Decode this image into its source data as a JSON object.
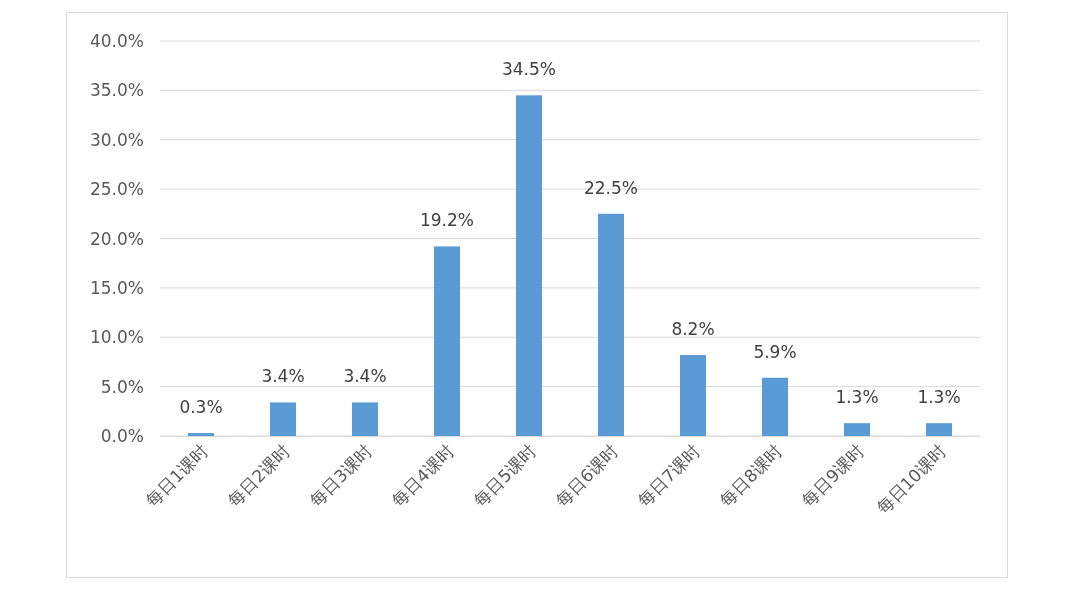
{
  "chart_data": {
    "type": "bar",
    "categories": [
      "每日1课时",
      "每日2课时",
      "每日3课时",
      "每日4课时",
      "每日5课时",
      "每日6课时",
      "每日7课时",
      "每日8课时",
      "每日9课时",
      "每日10课时"
    ],
    "values": [
      0.3,
      3.4,
      3.4,
      19.2,
      34.5,
      22.5,
      8.2,
      5.9,
      1.3,
      1.3
    ],
    "value_labels": [
      "0.3%",
      "3.4%",
      "3.4%",
      "19.2%",
      "34.5%",
      "22.5%",
      "8.2%",
      "5.9%",
      "1.3%",
      "1.3%"
    ],
    "color": "#5b9bd5",
    "ylim": [
      0,
      40
    ],
    "yticks": [
      {
        "value": 0,
        "label": "0.0%"
      },
      {
        "value": 5,
        "label": "5.0%"
      },
      {
        "value": 10,
        "label": "10.0%"
      },
      {
        "value": 15,
        "label": "15.0%"
      },
      {
        "value": 20,
        "label": "20.0%"
      },
      {
        "value": 25,
        "label": "25.0%"
      },
      {
        "value": 30,
        "label": "30.0%"
      },
      {
        "value": 35,
        "label": "35.0%"
      },
      {
        "value": 40,
        "label": "40.0%"
      }
    ],
    "grid": "y"
  }
}
